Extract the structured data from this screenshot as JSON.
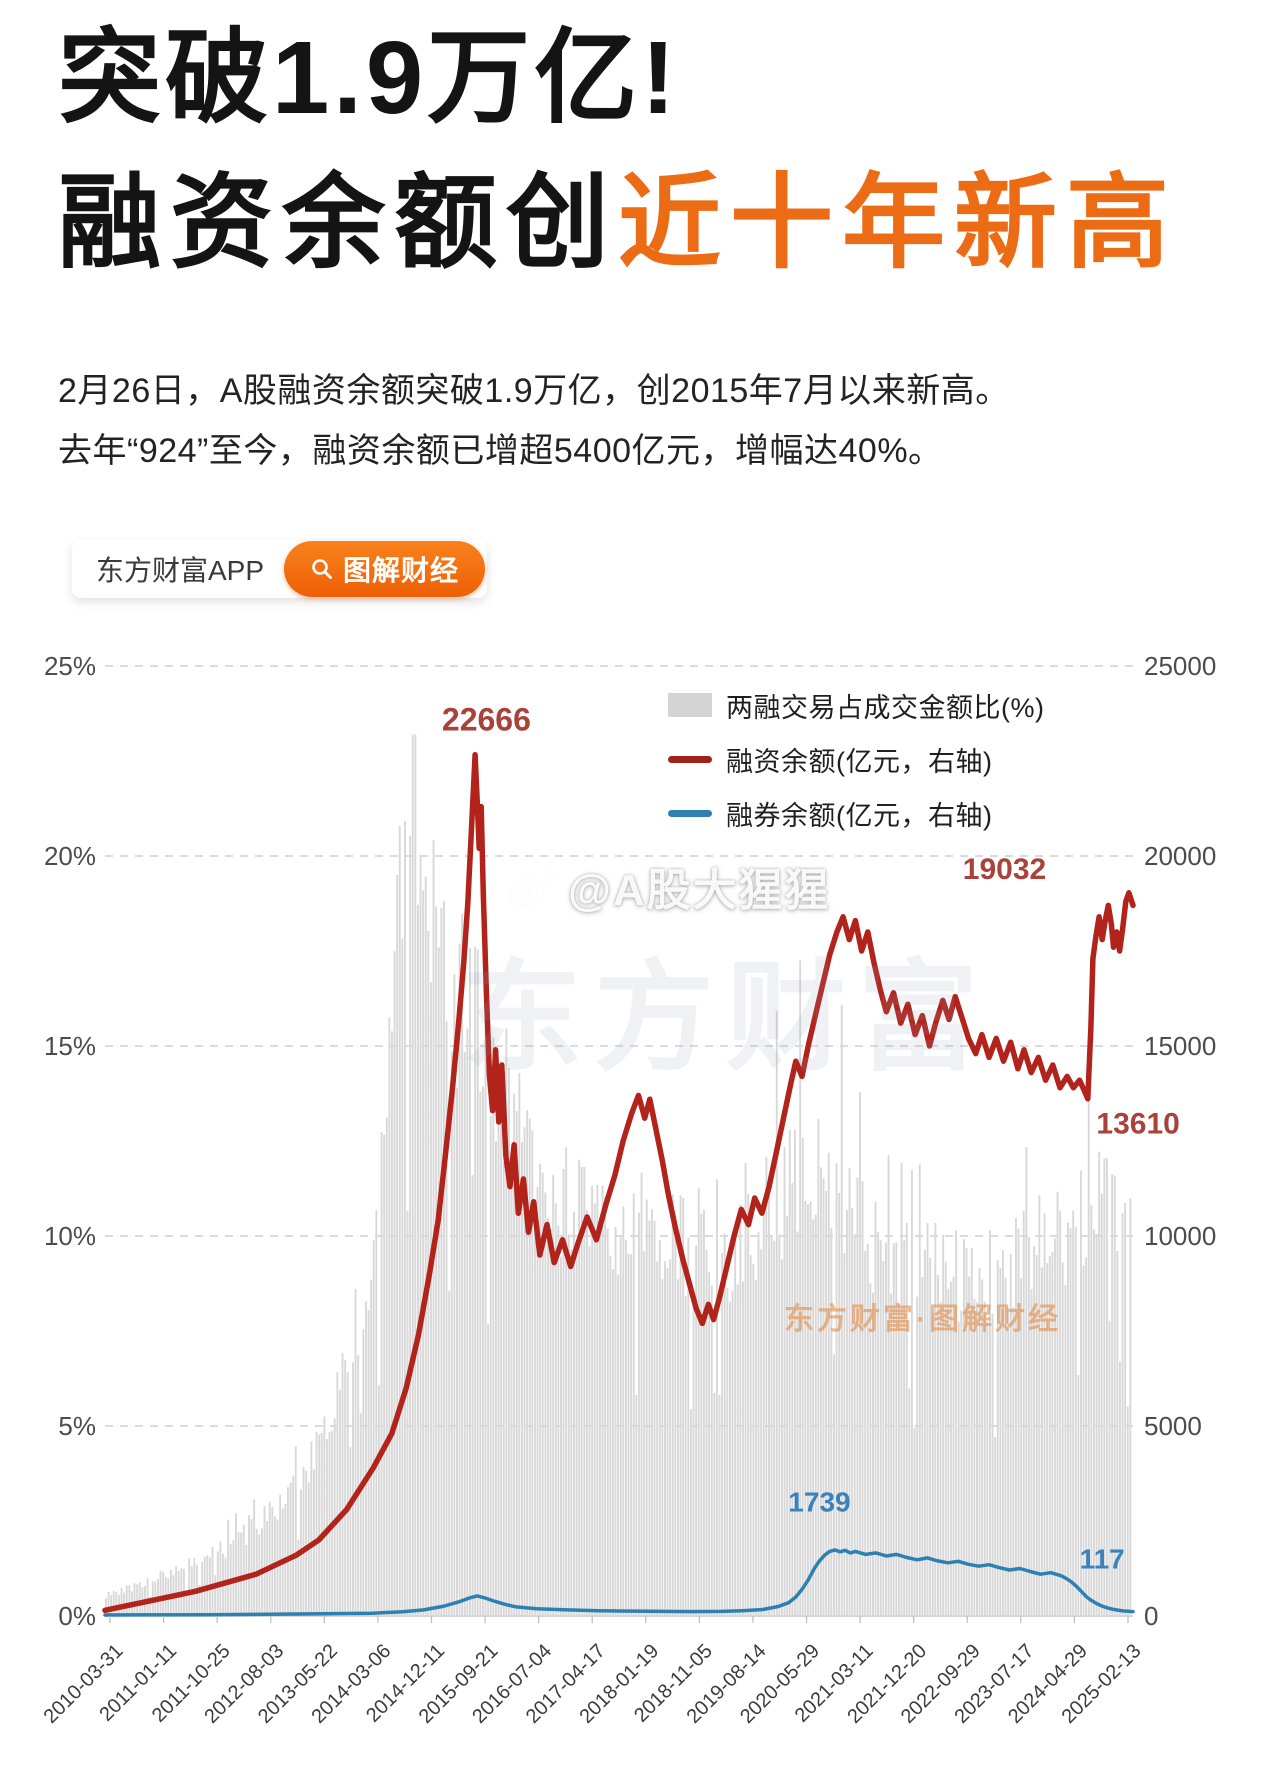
{
  "header": {
    "title_line1": "突破1.9万亿!",
    "title_line2_dark": "融资余额创",
    "title_line2_orange": "近十年新高",
    "accent_color": "#ec6b15",
    "paragraph_line1": "2月26日，A股融资余额突破1.9万亿，创2015年7月以来新高。",
    "paragraph_line2": "去年“924”至今，融资余额已增超5400亿元，增幅达40%。"
  },
  "badge": {
    "app_name": "东方财富APP",
    "pill_label": "图解财经",
    "pill_color": "#f1670d",
    "search_icon": "magnifier"
  },
  "watermarks": {
    "weibo_text": "@A股大猩猩",
    "weibo_icon": "weibo-logo",
    "center_text": "东方财富",
    "bottom_orange_text": "东方财富·图解财经"
  },
  "chart_data": {
    "type": "combo-bar-line",
    "title": "",
    "grid": "horizontal-dashed",
    "legend_position": "inside-top-right",
    "left_axis": {
      "unit": "%",
      "labels": [
        "25%",
        "20%",
        "15%",
        "10%",
        "5%",
        "0%"
      ],
      "ticks": [
        25,
        20,
        15,
        10,
        5,
        0
      ],
      "max": 25
    },
    "right_axis": {
      "unit": "亿元",
      "labels": [
        "25000",
        "20000",
        "15000",
        "10000",
        "5000",
        "0"
      ],
      "ticks": [
        25000,
        20000,
        15000,
        10000,
        5000,
        0
      ],
      "max": 25000
    },
    "x_labels": [
      "2010-03-31",
      "2011-01-11",
      "2011-10-25",
      "2012-08-03",
      "2013-05-22",
      "2014-03-06",
      "2014-12-11",
      "2015-09-21",
      "2016-07-04",
      "2017-04-17",
      "2018-01-19",
      "2018-11-05",
      "2019-08-14",
      "2020-05-29",
      "2021-03-11",
      "2021-12-20",
      "2022-09-29",
      "2023-07-17",
      "2024-04-29",
      "2025-02-13"
    ],
    "legend": [
      {
        "label": "两融交易占成交金额比(%)",
        "swatch": "bar",
        "color": "#d2d2d2"
      },
      {
        "label": "融资余额(亿元，右轴)",
        "swatch": "line",
        "color": "#9e231d"
      },
      {
        "label": "融券余额(亿元，右轴)",
        "swatch": "line",
        "color": "#2e80b2"
      }
    ],
    "series": [
      {
        "name": "两融交易占成交金额比(%)",
        "type": "bars",
        "axis": "left",
        "color": "#d8d8d8",
        "points": [
          [
            0,
            0.5
          ],
          [
            0.04,
            0.9
          ],
          [
            0.08,
            1.3
          ],
          [
            0.12,
            1.8
          ],
          [
            0.15,
            2.4
          ],
          [
            0.18,
            3.2
          ],
          [
            0.2,
            4
          ],
          [
            0.215,
            5
          ],
          [
            0.23,
            6.2
          ],
          [
            0.245,
            7.8
          ],
          [
            0.258,
            9.5
          ],
          [
            0.268,
            12
          ],
          [
            0.276,
            15
          ],
          [
            0.284,
            18.5
          ],
          [
            0.292,
            21
          ],
          [
            0.3,
            21.5
          ],
          [
            0.308,
            19.5
          ],
          [
            0.316,
            18
          ],
          [
            0.325,
            17
          ],
          [
            0.334,
            16.3
          ],
          [
            0.343,
            15.8
          ],
          [
            0.352,
            16.2
          ],
          [
            0.36,
            15.6
          ],
          [
            0.37,
            15
          ],
          [
            0.38,
            14.2
          ],
          [
            0.392,
            13.2
          ],
          [
            0.405,
            12.4
          ],
          [
            0.418,
            11.8
          ],
          [
            0.432,
            11.2
          ],
          [
            0.45,
            10.8
          ],
          [
            0.47,
            10.4
          ],
          [
            0.49,
            10.1
          ],
          [
            0.51,
            9.9
          ],
          [
            0.53,
            9.7
          ],
          [
            0.55,
            9.8
          ],
          [
            0.57,
            9.6
          ],
          [
            0.59,
            9.4
          ],
          [
            0.61,
            9.2
          ],
          [
            0.625,
            9.6
          ],
          [
            0.64,
            10.2
          ],
          [
            0.655,
            10.8
          ],
          [
            0.67,
            11.4
          ],
          [
            0.685,
            11.8
          ],
          [
            0.7,
            11.4
          ],
          [
            0.715,
            10.8
          ],
          [
            0.73,
            10.2
          ],
          [
            0.745,
            9.8
          ],
          [
            0.76,
            9.5
          ],
          [
            0.775,
            9.3
          ],
          [
            0.79,
            9.1
          ],
          [
            0.81,
            8.9
          ],
          [
            0.83,
            8.8
          ],
          [
            0.85,
            8.7
          ],
          [
            0.87,
            8.9
          ],
          [
            0.89,
            9.2
          ],
          [
            0.91,
            9.6
          ],
          [
            0.93,
            10
          ],
          [
            0.95,
            10.4
          ],
          [
            0.97,
            10.7
          ],
          [
            0.99,
            10.8
          ],
          [
            1,
            10.6
          ]
        ]
      },
      {
        "name": "融资余额(亿元，右轴)",
        "type": "line",
        "axis": "right",
        "color": "#b2231b",
        "width": 5.5,
        "points": [
          [
            0,
            150
          ],
          [
            0.088,
            650
          ],
          [
            0.147,
            1100
          ],
          [
            0.186,
            1600
          ],
          [
            0.208,
            2000
          ],
          [
            0.235,
            2800
          ],
          [
            0.261,
            3900
          ],
          [
            0.279,
            4800
          ],
          [
            0.293,
            6000
          ],
          [
            0.305,
            7400
          ],
          [
            0.315,
            8900
          ],
          [
            0.324,
            10400
          ],
          [
            0.331,
            12100
          ],
          [
            0.338,
            13900
          ],
          [
            0.344,
            15600
          ],
          [
            0.349,
            17200
          ],
          [
            0.353,
            18800
          ],
          [
            0.357,
            21000
          ],
          [
            0.36,
            22666
          ],
          [
            0.362,
            21500
          ],
          [
            0.364,
            20200
          ],
          [
            0.366,
            21300
          ],
          [
            0.368,
            19000
          ],
          [
            0.371,
            16400
          ],
          [
            0.374,
            14200
          ],
          [
            0.377,
            13300
          ],
          [
            0.38,
            14900
          ],
          [
            0.383,
            13000
          ],
          [
            0.386,
            14500
          ],
          [
            0.39,
            12100
          ],
          [
            0.394,
            11300
          ],
          [
            0.398,
            12400
          ],
          [
            0.402,
            10600
          ],
          [
            0.407,
            11500
          ],
          [
            0.412,
            10100
          ],
          [
            0.417,
            10900
          ],
          [
            0.423,
            9500
          ],
          [
            0.43,
            10300
          ],
          [
            0.437,
            9300
          ],
          [
            0.445,
            9900
          ],
          [
            0.453,
            9200
          ],
          [
            0.46,
            9800
          ],
          [
            0.469,
            10500
          ],
          [
            0.478,
            9900
          ],
          [
            0.487,
            10800
          ],
          [
            0.496,
            11600
          ],
          [
            0.504,
            12500
          ],
          [
            0.512,
            13200
          ],
          [
            0.519,
            13700
          ],
          [
            0.525,
            13100
          ],
          [
            0.53,
            13600
          ],
          [
            0.536,
            12800
          ],
          [
            0.542,
            12000
          ],
          [
            0.548,
            11100
          ],
          [
            0.555,
            10200
          ],
          [
            0.562,
            9400
          ],
          [
            0.569,
            8700
          ],
          [
            0.575,
            8100
          ],
          [
            0.581,
            7700
          ],
          [
            0.587,
            8200
          ],
          [
            0.592,
            7800
          ],
          [
            0.598,
            8400
          ],
          [
            0.605,
            9200
          ],
          [
            0.612,
            10000
          ],
          [
            0.619,
            10700
          ],
          [
            0.626,
            10300
          ],
          [
            0.632,
            11000
          ],
          [
            0.639,
            10600
          ],
          [
            0.646,
            11300
          ],
          [
            0.653,
            12200
          ],
          [
            0.66,
            13100
          ],
          [
            0.667,
            14000
          ],
          [
            0.672,
            14600
          ],
          [
            0.678,
            14200
          ],
          [
            0.684,
            15000
          ],
          [
            0.691,
            15800
          ],
          [
            0.698,
            16600
          ],
          [
            0.705,
            17400
          ],
          [
            0.712,
            18000
          ],
          [
            0.718,
            18400
          ],
          [
            0.724,
            17800
          ],
          [
            0.73,
            18300
          ],
          [
            0.736,
            17500
          ],
          [
            0.742,
            18000
          ],
          [
            0.748,
            17200
          ],
          [
            0.754,
            16500
          ],
          [
            0.76,
            15900
          ],
          [
            0.767,
            16400
          ],
          [
            0.774,
            15600
          ],
          [
            0.781,
            16100
          ],
          [
            0.788,
            15300
          ],
          [
            0.795,
            15800
          ],
          [
            0.802,
            15000
          ],
          [
            0.808,
            15600
          ],
          [
            0.815,
            16200
          ],
          [
            0.821,
            15700
          ],
          [
            0.827,
            16300
          ],
          [
            0.833,
            15800
          ],
          [
            0.84,
            15200
          ],
          [
            0.847,
            14800
          ],
          [
            0.853,
            15300
          ],
          [
            0.86,
            14700
          ],
          [
            0.867,
            15200
          ],
          [
            0.874,
            14600
          ],
          [
            0.881,
            15100
          ],
          [
            0.888,
            14400
          ],
          [
            0.894,
            14900
          ],
          [
            0.901,
            14300
          ],
          [
            0.908,
            14700
          ],
          [
            0.915,
            14100
          ],
          [
            0.922,
            14500
          ],
          [
            0.929,
            13900
          ],
          [
            0.936,
            14200
          ],
          [
            0.942,
            13900
          ],
          [
            0.948,
            14100
          ],
          [
            0.953,
            13800
          ],
          [
            0.956,
            13610
          ],
          [
            0.959,
            15500
          ],
          [
            0.961,
            17300
          ],
          [
            0.964,
            17900
          ],
          [
            0.967,
            18400
          ],
          [
            0.97,
            17800
          ],
          [
            0.973,
            18300
          ],
          [
            0.976,
            18700
          ],
          [
            0.979,
            18200
          ],
          [
            0.981,
            17600
          ],
          [
            0.984,
            18000
          ],
          [
            0.987,
            17500
          ],
          [
            0.99,
            18100
          ],
          [
            0.993,
            18800
          ],
          [
            0.996,
            19032
          ],
          [
            1,
            18700
          ]
        ]
      },
      {
        "name": "融券余额(亿元，右轴)",
        "type": "line",
        "axis": "right",
        "color": "#2e80b2",
        "width": 3.5,
        "points": [
          [
            0,
            25
          ],
          [
            0.1,
            35
          ],
          [
            0.2,
            55
          ],
          [
            0.26,
            75
          ],
          [
            0.29,
            110
          ],
          [
            0.31,
            160
          ],
          [
            0.33,
            260
          ],
          [
            0.345,
            380
          ],
          [
            0.355,
            480
          ],
          [
            0.362,
            530
          ],
          [
            0.37,
            470
          ],
          [
            0.38,
            380
          ],
          [
            0.39,
            300
          ],
          [
            0.4,
            240
          ],
          [
            0.42,
            190
          ],
          [
            0.45,
            160
          ],
          [
            0.48,
            140
          ],
          [
            0.51,
            130
          ],
          [
            0.54,
            120
          ],
          [
            0.57,
            115
          ],
          [
            0.6,
            120
          ],
          [
            0.62,
            140
          ],
          [
            0.64,
            170
          ],
          [
            0.655,
            250
          ],
          [
            0.665,
            350
          ],
          [
            0.672,
            500
          ],
          [
            0.678,
            700
          ],
          [
            0.684,
            950
          ],
          [
            0.69,
            1250
          ],
          [
            0.695,
            1450
          ],
          [
            0.7,
            1600
          ],
          [
            0.705,
            1700
          ],
          [
            0.71,
            1739
          ],
          [
            0.715,
            1690
          ],
          [
            0.72,
            1730
          ],
          [
            0.725,
            1660
          ],
          [
            0.73,
            1700
          ],
          [
            0.74,
            1620
          ],
          [
            0.75,
            1660
          ],
          [
            0.76,
            1580
          ],
          [
            0.77,
            1620
          ],
          [
            0.78,
            1540
          ],
          [
            0.79,
            1480
          ],
          [
            0.8,
            1530
          ],
          [
            0.81,
            1450
          ],
          [
            0.82,
            1400
          ],
          [
            0.83,
            1440
          ],
          [
            0.84,
            1360
          ],
          [
            0.85,
            1310
          ],
          [
            0.86,
            1350
          ],
          [
            0.87,
            1270
          ],
          [
            0.88,
            1210
          ],
          [
            0.89,
            1250
          ],
          [
            0.9,
            1170
          ],
          [
            0.91,
            1100
          ],
          [
            0.92,
            1140
          ],
          [
            0.93,
            1060
          ],
          [
            0.935,
            990
          ],
          [
            0.94,
            900
          ],
          [
            0.945,
            780
          ],
          [
            0.95,
            640
          ],
          [
            0.955,
            500
          ],
          [
            0.96,
            400
          ],
          [
            0.965,
            320
          ],
          [
            0.97,
            260
          ],
          [
            0.975,
            215
          ],
          [
            0.98,
            180
          ],
          [
            0.985,
            155
          ],
          [
            0.99,
            135
          ],
          [
            1,
            117
          ]
        ]
      }
    ],
    "annotations": [
      {
        "text": "22666",
        "f": 0.371,
        "v": 23300,
        "color": "#a8423a",
        "size": 32
      },
      {
        "text": "19032",
        "f": 0.875,
        "v": 19400,
        "color": "#a8423a",
        "size": 30
      },
      {
        "text": "13610",
        "f": 1.005,
        "v": 12700,
        "color": "#a8423a",
        "size": 30
      },
      {
        "text": "1739",
        "f": 0.695,
        "v": 2750,
        "color": "#3b82bb",
        "size": 28
      },
      {
        "text": "117",
        "f": 0.97,
        "v": 1250,
        "color": "#3b82bb",
        "size": 28
      }
    ]
  }
}
